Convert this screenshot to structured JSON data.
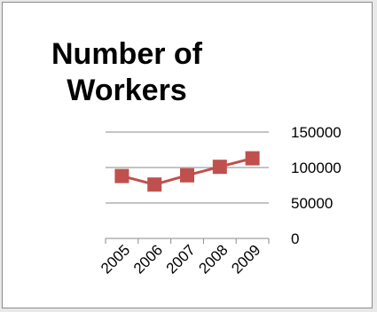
{
  "chart_data": {
    "type": "line",
    "title_lines": [
      "Number of",
      "Workers"
    ],
    "categories": [
      "2005",
      "2006",
      "2007",
      "2008",
      "2009"
    ],
    "series": [
      {
        "values": [
          88000,
          76000,
          89000,
          101000,
          113000
        ],
        "color": "#c0504d"
      }
    ],
    "y_ticks": [
      0,
      50000,
      100000,
      150000
    ],
    "y_tick_labels": [
      "0",
      "50000",
      "100000",
      "150000"
    ],
    "ylim": [
      0,
      150000
    ],
    "xlabel": "",
    "ylabel": "",
    "gridlines": true,
    "y_axis_side": "right",
    "legend": "none"
  }
}
